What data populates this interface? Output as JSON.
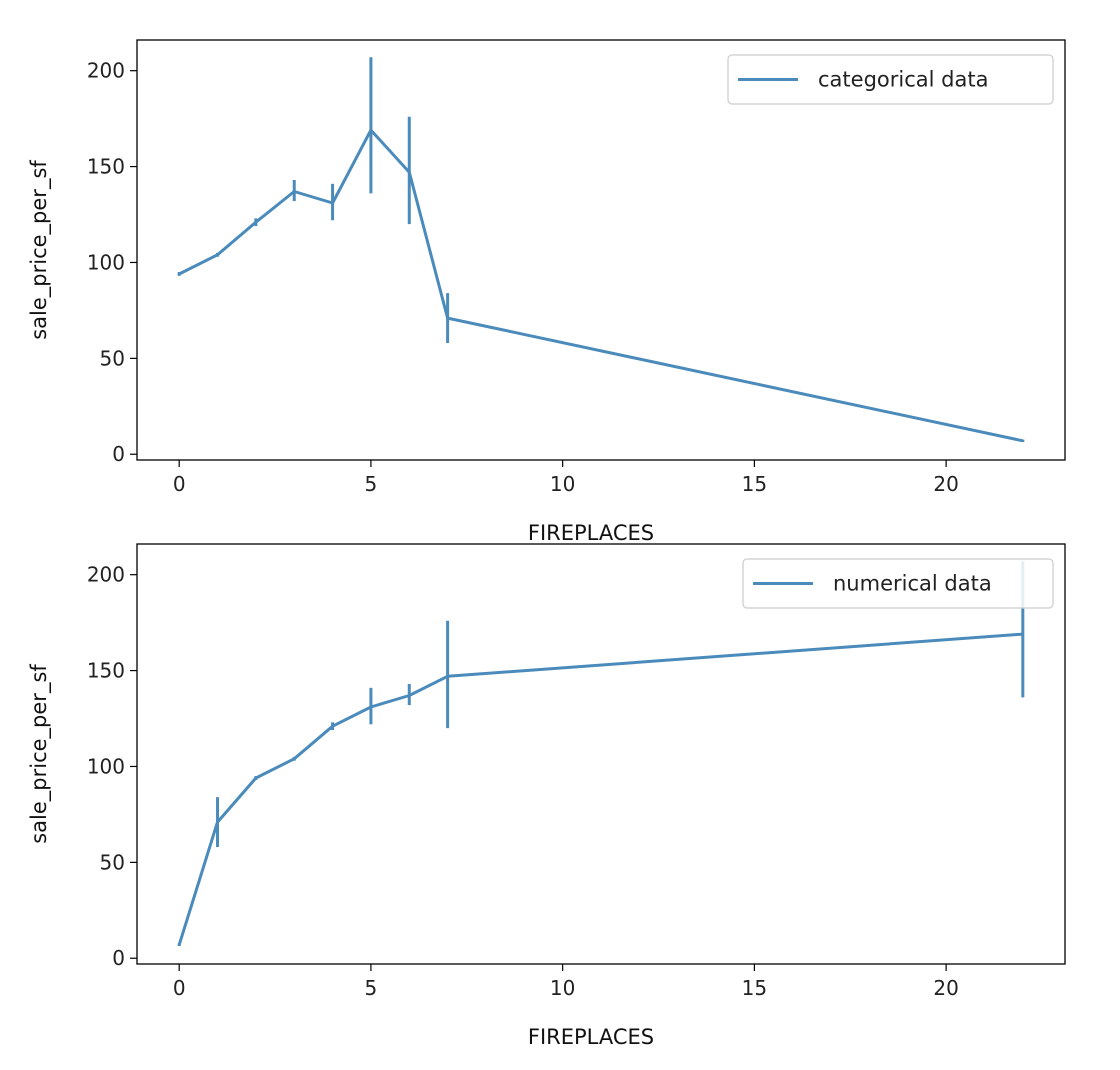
{
  "chart_data": [
    {
      "type": "line",
      "title": "",
      "xlabel": "FIREPLACES",
      "ylabel": "sale_price_per_sf",
      "xlim": [
        -1.1,
        23.1
      ],
      "ylim": [
        -3,
        216
      ],
      "xticks": [
        0,
        5,
        10,
        15,
        20
      ],
      "yticks": [
        0,
        50,
        100,
        150,
        200
      ],
      "grid": false,
      "legend_position": "top-right",
      "color": "#4a8bbc",
      "series": [
        {
          "name": "categorical data",
          "x": [
            0,
            1,
            2,
            3,
            4,
            5,
            6,
            7,
            22
          ],
          "y": [
            94,
            104,
            121,
            137,
            131,
            169,
            147,
            71,
            7
          ],
          "error_low": [
            93,
            103,
            119,
            132,
            122,
            136,
            120,
            58,
            7
          ],
          "error_high": [
            95,
            105,
            123,
            143,
            141,
            207,
            176,
            84,
            7
          ]
        }
      ]
    },
    {
      "type": "line",
      "title": "",
      "xlabel": "FIREPLACES",
      "ylabel": "sale_price_per_sf",
      "xlim": [
        -1.1,
        23.1
      ],
      "ylim": [
        -3,
        216
      ],
      "xticks": [
        0,
        5,
        10,
        15,
        20
      ],
      "yticks": [
        0,
        50,
        100,
        150,
        200
      ],
      "grid": false,
      "legend_position": "top-right",
      "color": "#4a8bbc",
      "series": [
        {
          "name": "numerical data",
          "x": [
            0,
            1,
            2,
            3,
            4,
            5,
            6,
            7,
            22
          ],
          "y": [
            7,
            71,
            94,
            104,
            121,
            131,
            137,
            147,
            169
          ],
          "error_low": [
            7,
            58,
            93,
            103,
            119,
            122,
            132,
            120,
            136
          ],
          "error_high": [
            7,
            84,
            95,
            105,
            123,
            141,
            143,
            176,
            207
          ]
        }
      ]
    }
  ]
}
